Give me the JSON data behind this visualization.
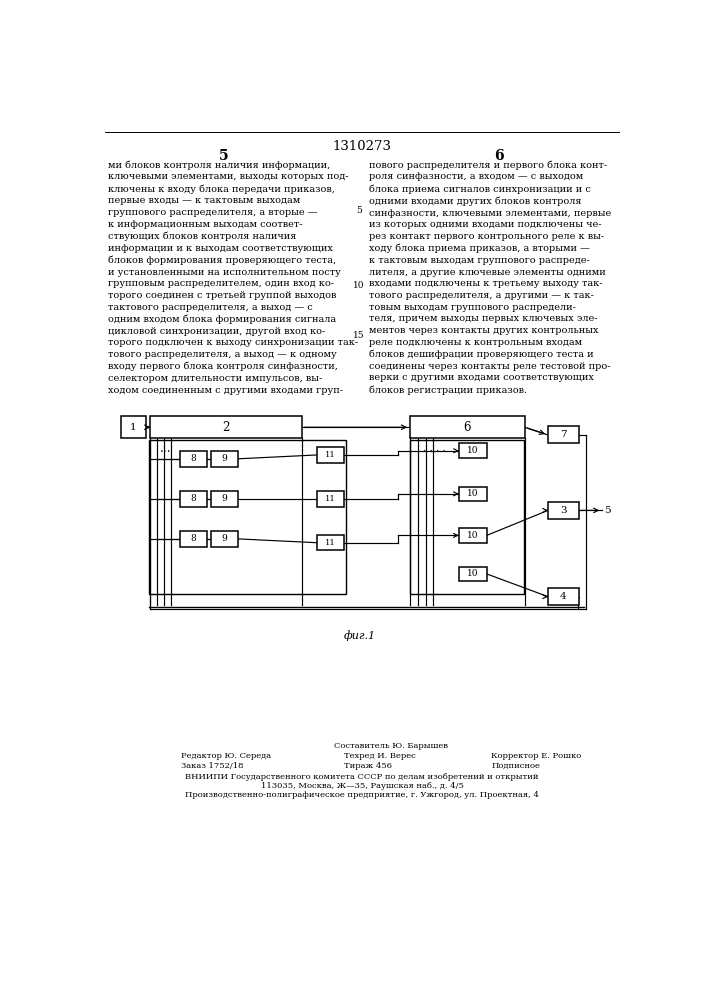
{
  "title": "1310273",
  "page_left": "5",
  "page_right": "6",
  "fig_label": "фиг.1",
  "text_left": "ми блоков контроля наличия информации,\nключевыми элементами, выходы которых под-\nключены к входу блока передачи приказов,\nпервые входы — к тактовым выходам\nгруппового распределителя, а вторые —\nк информационным выходам соответ-\nствующих блоков контроля наличия\nинформации и к выходам соответствующих\nблоков формирования проверяющего теста,\nи установленными на исполнительном посту\nгрупповым распределителем, один вход ко-\nторого соединен с третьей группой выходов\nтактового распределителя, а выход — с\nодним входом блока формирования сигнала\nцикловой синхронизации, другой вход ко-\nторого подключен к выходу синхронизации так-\nтового распределителя, а выход — к одному\nвходу первого блока контроля синфазности,\nселектором длительности импульсов, вы-\nходом соединенным с другими входами груп-",
  "text_right": "пового распределителя и первого блока конт-\nроля синфазности, а входом — с выходом\nблока приема сигналов синхронизации и с\nодними входами других блоков контроля\nсинфазности, ключевыми элементами, первые\nиз которых одними входами подключены че-\nрез контакт первого контрольного реле к вы-\nходу блока приема приказов, а вторыми —\nк тактовым выходам группового распреде-\nлителя, а другие ключевые элементы одними\nвходами подключены к третьему выходу так-\nтового распределителя, а другими — к так-\nтовым выходам группового распредели-\nтеля, причем выходы первых ключевых эле-\nментов через контакты других контрольных\nреле подключены к контрольным входам\nблоков дешифрации проверяющего теста и\nсоединены через контакты реле тестовой про-\nверки с другими входами соответствующих\nблоков регистрации приказов.",
  "line_num_5": "5",
  "line_num_10": "10",
  "line_num_15": "15",
  "footnote_editor": "Редактор Ю. Середа",
  "footnote_composer": "Составитель Ю. Барышев",
  "footnote_order": "Заказ 1752/18",
  "footnote_techred": "Техред И. Верес",
  "footnote_corrector": "Корректор Е. Рошко",
  "footnote_tirazh": "Тираж 456",
  "footnote_podpisoe": "Подписное",
  "footnote_vniipи": "ВНИИПИ Государственного комитета СССР по делам изобретений и открытий",
  "footnote_addr1": "113035, Москва, Ж—35, Раушская наб., д. 4/5",
  "footnote_addr2": "Производственно-полиграфическое предприятие, г. Ужгород, ул. Проектная, 4",
  "bg_color": "#ffffff",
  "text_color": "#000000"
}
